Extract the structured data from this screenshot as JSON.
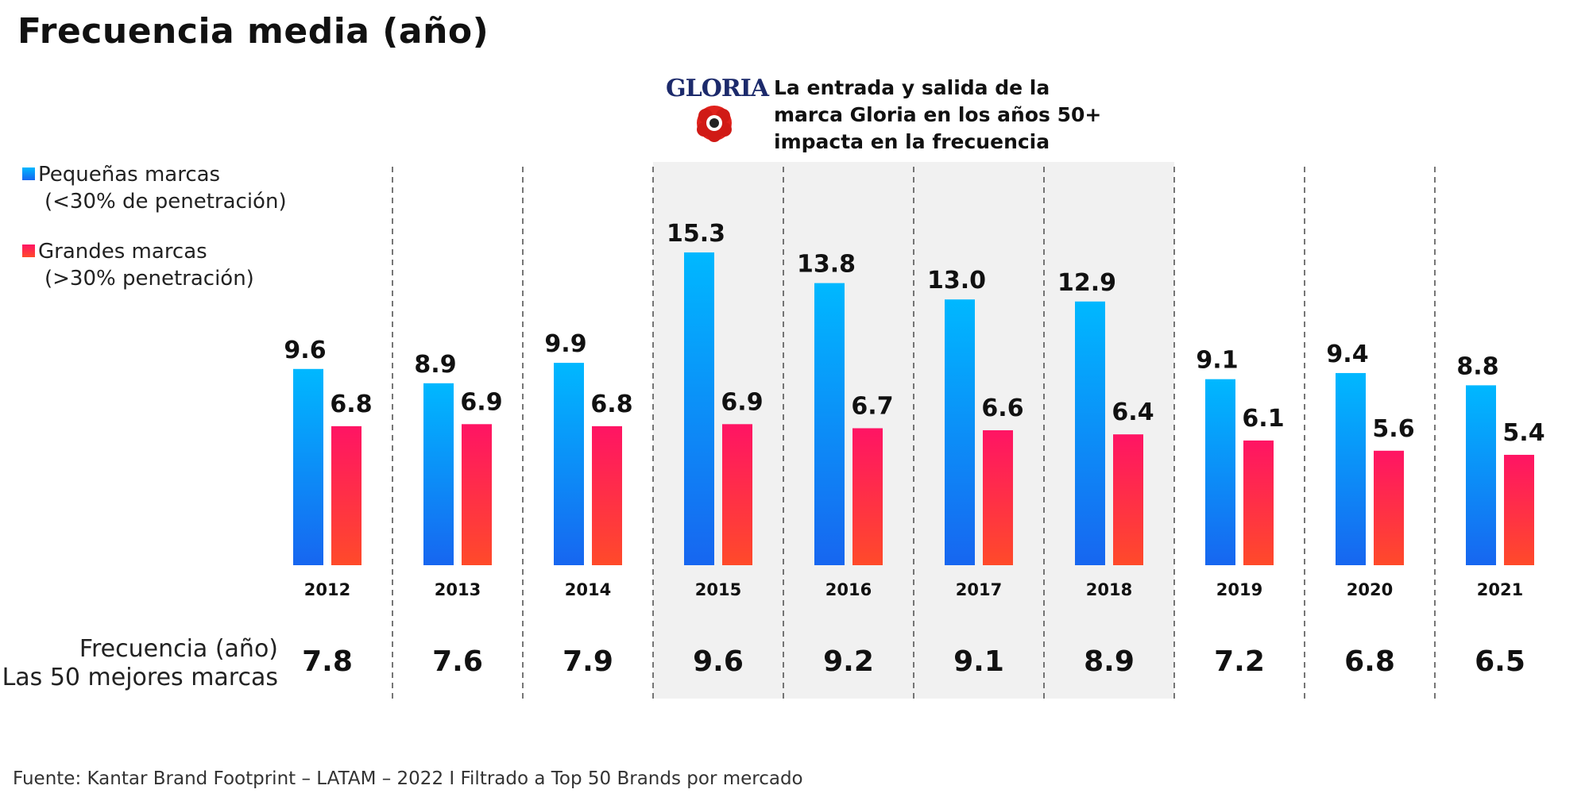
{
  "title": "Frecuencia media (año)",
  "legend": {
    "small": {
      "line1": "Pequeñas marcas",
      "line2": "(<30% de penetración)"
    },
    "large": {
      "line1": "Grandes marcas",
      "line2": "(>30% penetración)"
    }
  },
  "annotation": {
    "logo_text": "GLORIA",
    "text": "La entrada y salida de la marca Gloria en los años 50+ impacta en la frecuencia"
  },
  "row_label": {
    "line1": "Frecuencia (año)",
    "line2": "Las 50 mejores marcas"
  },
  "source": "Fuente: Kantar Brand Footprint – LATAM – 2022 I Filtrado a Top 50 Brands por mercado",
  "colors": {
    "small_top": "#00b8ff",
    "small_bottom": "#1766f0",
    "large_top": "#ff1464",
    "large_bottom": "#ff4a2a",
    "highlight_bg": "#f1f1f1",
    "divider": "#555555"
  },
  "chart_data": {
    "type": "bar",
    "categories": [
      "2012",
      "2013",
      "2014",
      "2015",
      "2016",
      "2017",
      "2018",
      "2019",
      "2020",
      "2021"
    ],
    "series": [
      {
        "name": "Pequeñas marcas",
        "values": [
          9.6,
          8.9,
          9.9,
          15.3,
          13.8,
          13.0,
          12.9,
          9.1,
          9.4,
          8.8
        ],
        "labels": [
          "9.6",
          "8.9",
          "9.9",
          "15.3",
          "13.8",
          "13.0",
          "12.9",
          "9.1",
          "9.4",
          "8.8"
        ]
      },
      {
        "name": "Grandes marcas",
        "values": [
          6.8,
          6.9,
          6.8,
          6.9,
          6.7,
          6.6,
          6.4,
          6.1,
          5.6,
          5.4
        ],
        "labels": [
          "6.8",
          "6.9",
          "6.8",
          "6.9",
          "6.7",
          "6.6",
          "6.4",
          "6.1",
          "5.6",
          "5.4"
        ]
      }
    ],
    "top50_frequency": [
      "7.8",
      "7.6",
      "7.9",
      "9.6",
      "9.2",
      "9.1",
      "8.9",
      "7.2",
      "6.8",
      "6.5"
    ],
    "highlighted_categories": [
      "2015",
      "2016",
      "2017",
      "2018"
    ],
    "ylim": [
      0,
      15.3
    ],
    "grid": false,
    "legend_position": "left"
  }
}
